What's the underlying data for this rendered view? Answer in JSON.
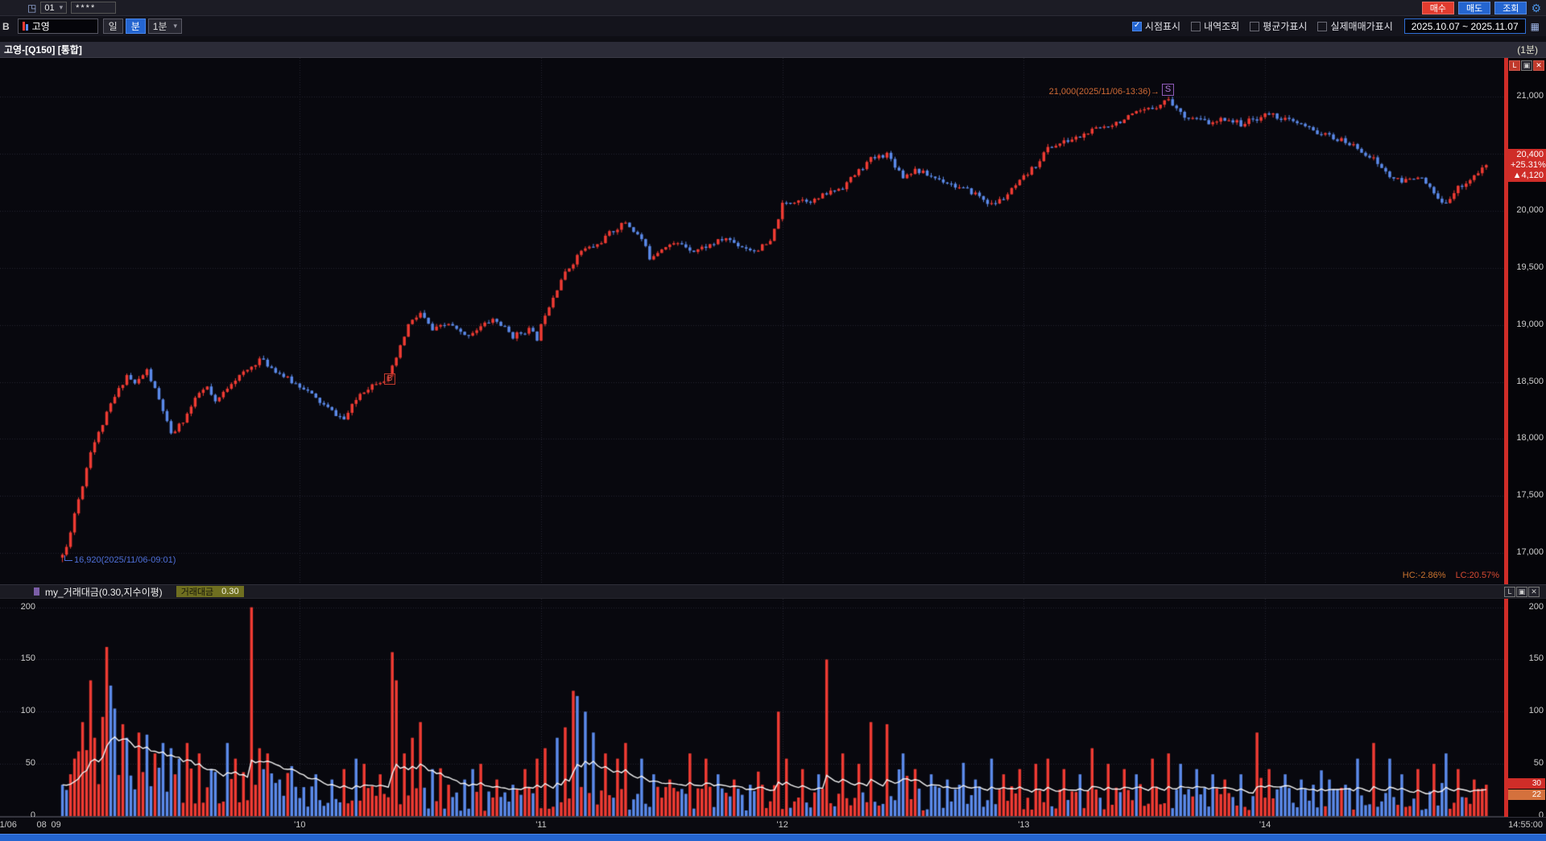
{
  "colors": {
    "up": "#ef3b33",
    "down": "#5b8aea",
    "bg": "#08080e",
    "grid": "#262631",
    "ma_line": "#f5f5f5",
    "badge_red": "#cf2d28",
    "badge_orange": "#d4713d",
    "accent_blue": "#2465d0"
  },
  "toolbar": {
    "account_no": "01",
    "password_mask": "****",
    "buy_button": "매수",
    "sell_button": "매도",
    "inquiry_button": "조회"
  },
  "chart_toolbar": {
    "b_label": "B",
    "symbol_input": "고영",
    "day_button": "일",
    "minute_button": "분",
    "interval_select": "1분",
    "checkboxes": [
      {
        "label": "시점표시",
        "checked": true
      },
      {
        "label": "내역조회",
        "checked": false
      },
      {
        "label": "평균가표시",
        "checked": false
      },
      {
        "label": "실제매매가표시",
        "checked": false
      }
    ],
    "date_range": "2025.10.07 ~ 2025.11.07"
  },
  "chart_header": {
    "title": "고영-[Q150] [통합]",
    "interval_label": "(1분)"
  },
  "pane_icons": [
    "L",
    "▣",
    "✕"
  ],
  "main_chart": {
    "y_ticks": [
      "21,000",
      "20,500",
      "20,000",
      "19,500",
      "19,000",
      "18,500",
      "18,000",
      "17,500",
      "17,000"
    ],
    "price_badge": {
      "price": "20,400",
      "pct": "+25.31%",
      "change": "▲4,120"
    },
    "low_annotation": "16,920(2025/11/06-09:01)",
    "high_annotation": "21,000(2025/11/06-13:36)→",
    "s_marker": "S",
    "b_marker": "B",
    "hc": "HC:-2.86%",
    "lc": "LC:20.57%"
  },
  "volume_pane": {
    "title": "my_거래대금(0.30,지수이평)",
    "legend_label": "거래대금",
    "legend_value": "0.30",
    "y_ticks": [
      "200",
      "150",
      "100",
      "50",
      "0"
    ],
    "badges": [
      {
        "text": "30",
        "color": "#cf2d28"
      },
      {
        "text": "22",
        "color": "#d4713d"
      }
    ]
  },
  "time_axis": {
    "labels": [
      {
        "text": "1/06",
        "m": -12.5
      },
      {
        "text": "08",
        "m": -4.2
      },
      {
        "text": "09",
        "m": -0.6
      },
      {
        "text": "'10",
        "m": 60
      },
      {
        "text": "'11",
        "m": 120
      },
      {
        "text": "'12",
        "m": 180
      },
      {
        "text": "'13",
        "m": 240
      },
      {
        "text": "'14",
        "m": 300
      },
      {
        "text": "14:55:00",
        "m": 355,
        "align": "right"
      }
    ]
  },
  "chart_data": {
    "type": "candlestick",
    "symbol": "고영 [Q150]",
    "interval": "1분",
    "session_start": "09:00",
    "session_end": "14:55:00",
    "session_low": 16920,
    "session_high": 21000,
    "last": 20400,
    "change": 4120,
    "change_pct": 25.31,
    "price_ticks": [
      21000,
      20500,
      20000,
      19500,
      19000,
      18500,
      18000,
      17500,
      17000
    ],
    "volume_ticks": [
      0,
      50,
      100,
      150,
      200
    ],
    "b_marker_minute": 82,
    "s_marker_minute": 276,
    "seed": 11,
    "price_anchors": [
      [
        0,
        16920
      ],
      [
        2,
        17050
      ],
      [
        4,
        17350
      ],
      [
        6,
        17600
      ],
      [
        8,
        17900
      ],
      [
        10,
        18050
      ],
      [
        13,
        18300
      ],
      [
        17,
        18560
      ],
      [
        19,
        18480
      ],
      [
        22,
        18600
      ],
      [
        24,
        18430
      ],
      [
        26,
        18250
      ],
      [
        28,
        18030
      ],
      [
        31,
        18160
      ],
      [
        35,
        18400
      ],
      [
        37,
        18450
      ],
      [
        39,
        18310
      ],
      [
        43,
        18500
      ],
      [
        47,
        18600
      ],
      [
        50,
        18700
      ],
      [
        54,
        18600
      ],
      [
        58,
        18500
      ],
      [
        61,
        18450
      ],
      [
        64,
        18350
      ],
      [
        68,
        18240
      ],
      [
        71,
        18170
      ],
      [
        75,
        18400
      ],
      [
        79,
        18500
      ],
      [
        82,
        18530
      ],
      [
        85,
        18800
      ],
      [
        87,
        19000
      ],
      [
        90,
        19100
      ],
      [
        93,
        18950
      ],
      [
        97,
        19010
      ],
      [
        101,
        18900
      ],
      [
        104,
        18960
      ],
      [
        108,
        19050
      ],
      [
        110,
        19000
      ],
      [
        113,
        18900
      ],
      [
        117,
        18960
      ],
      [
        119,
        18880
      ],
      [
        121,
        19100
      ],
      [
        125,
        19400
      ],
      [
        128,
        19550
      ],
      [
        130,
        19650
      ],
      [
        134,
        19700
      ],
      [
        137,
        19800
      ],
      [
        141,
        19900
      ],
      [
        145,
        19750
      ],
      [
        147,
        19590
      ],
      [
        151,
        19700
      ],
      [
        155,
        19710
      ],
      [
        158,
        19650
      ],
      [
        162,
        19700
      ],
      [
        166,
        19760
      ],
      [
        169,
        19700
      ],
      [
        173,
        19650
      ],
      [
        177,
        19720
      ],
      [
        180,
        20050
      ],
      [
        184,
        20100
      ],
      [
        188,
        20090
      ],
      [
        191,
        20150
      ],
      [
        195,
        20210
      ],
      [
        199,
        20350
      ],
      [
        202,
        20450
      ],
      [
        206,
        20500
      ],
      [
        210,
        20300
      ],
      [
        213,
        20360
      ],
      [
        217,
        20300
      ],
      [
        221,
        20250
      ],
      [
        224,
        20200
      ],
      [
        228,
        20150
      ],
      [
        232,
        20050
      ],
      [
        235,
        20110
      ],
      [
        239,
        20250
      ],
      [
        243,
        20400
      ],
      [
        246,
        20550
      ],
      [
        250,
        20600
      ],
      [
        254,
        20650
      ],
      [
        257,
        20700
      ],
      [
        261,
        20750
      ],
      [
        265,
        20800
      ],
      [
        268,
        20850
      ],
      [
        272,
        20900
      ],
      [
        276,
        20980
      ],
      [
        279,
        20850
      ],
      [
        283,
        20800
      ],
      [
        287,
        20760
      ],
      [
        290,
        20810
      ],
      [
        294,
        20760
      ],
      [
        298,
        20810
      ],
      [
        301,
        20850
      ],
      [
        305,
        20800
      ],
      [
        309,
        20750
      ],
      [
        312,
        20700
      ],
      [
        316,
        20650
      ],
      [
        320,
        20600
      ],
      [
        323,
        20550
      ],
      [
        327,
        20450
      ],
      [
        331,
        20300
      ],
      [
        334,
        20250
      ],
      [
        338,
        20310
      ],
      [
        342,
        20150
      ],
      [
        344,
        20050
      ],
      [
        348,
        20200
      ],
      [
        352,
        20300
      ],
      [
        355,
        20400
      ]
    ],
    "volume_spikes": [
      [
        1,
        30,
        "b"
      ],
      [
        2,
        25,
        "b"
      ],
      [
        4,
        55,
        "r"
      ],
      [
        5,
        62,
        "r"
      ],
      [
        6,
        90,
        "r"
      ],
      [
        8,
        130,
        "r"
      ],
      [
        9,
        75,
        "r"
      ],
      [
        11,
        95,
        "r"
      ],
      [
        12,
        162,
        "r"
      ],
      [
        13,
        125,
        "b"
      ],
      [
        14,
        103,
        "b"
      ],
      [
        16,
        88,
        "r"
      ],
      [
        17,
        75,
        "b"
      ],
      [
        20,
        80,
        "r"
      ],
      [
        22,
        78,
        "b"
      ],
      [
        24,
        60,
        "r"
      ],
      [
        26,
        70,
        "b"
      ],
      [
        28,
        65,
        "b"
      ],
      [
        30,
        55,
        "b"
      ],
      [
        32,
        70,
        "r"
      ],
      [
        35,
        60,
        "r"
      ],
      [
        38,
        45,
        "b"
      ],
      [
        42,
        70,
        "b"
      ],
      [
        44,
        55,
        "r"
      ],
      [
        48,
        200,
        "r"
      ],
      [
        50,
        65,
        "r"
      ],
      [
        52,
        60,
        "r"
      ],
      [
        55,
        35,
        "b"
      ],
      [
        59,
        28,
        "b"
      ],
      [
        64,
        40,
        "b"
      ],
      [
        68,
        35,
        "b"
      ],
      [
        71,
        45,
        "r"
      ],
      [
        74,
        55,
        "b"
      ],
      [
        76,
        50,
        "r"
      ],
      [
        80,
        40,
        "r"
      ],
      [
        83,
        157,
        "r"
      ],
      [
        84,
        130,
        "r"
      ],
      [
        86,
        60,
        "r"
      ],
      [
        88,
        75,
        "r"
      ],
      [
        90,
        90,
        "r"
      ],
      [
        93,
        45,
        "b"
      ],
      [
        97,
        30,
        "r"
      ],
      [
        101,
        35,
        "b"
      ],
      [
        103,
        45,
        "b"
      ],
      [
        105,
        50,
        "r"
      ],
      [
        109,
        35,
        "r"
      ],
      [
        113,
        30,
        "b"
      ],
      [
        116,
        45,
        "r"
      ],
      [
        119,
        55,
        "r"
      ],
      [
        121,
        65,
        "r"
      ],
      [
        124,
        75,
        "b"
      ],
      [
        126,
        85,
        "r"
      ],
      [
        128,
        120,
        "r"
      ],
      [
        129,
        115,
        "b"
      ],
      [
        131,
        100,
        "b"
      ],
      [
        133,
        80,
        "b"
      ],
      [
        136,
        60,
        "r"
      ],
      [
        139,
        55,
        "r"
      ],
      [
        141,
        70,
        "r"
      ],
      [
        145,
        55,
        "b"
      ],
      [
        148,
        40,
        "b"
      ],
      [
        152,
        35,
        "r"
      ],
      [
        157,
        60,
        "r"
      ],
      [
        161,
        55,
        "r"
      ],
      [
        164,
        40,
        "b"
      ],
      [
        168,
        35,
        "r"
      ],
      [
        172,
        30,
        "b"
      ],
      [
        175,
        30,
        "r"
      ],
      [
        179,
        100,
        "r"
      ],
      [
        181,
        55,
        "r"
      ],
      [
        185,
        45,
        "r"
      ],
      [
        189,
        40,
        "b"
      ],
      [
        191,
        150,
        "r"
      ],
      [
        195,
        60,
        "r"
      ],
      [
        199,
        50,
        "r"
      ],
      [
        202,
        90,
        "r"
      ],
      [
        206,
        88,
        "r"
      ],
      [
        210,
        60,
        "b"
      ],
      [
        213,
        45,
        "r"
      ],
      [
        217,
        40,
        "b"
      ],
      [
        221,
        35,
        "b"
      ],
      [
        224,
        30,
        "b"
      ],
      [
        228,
        35,
        "b"
      ],
      [
        232,
        55,
        "b"
      ],
      [
        235,
        40,
        "r"
      ],
      [
        239,
        45,
        "r"
      ],
      [
        243,
        50,
        "r"
      ],
      [
        246,
        55,
        "r"
      ],
      [
        250,
        45,
        "r"
      ],
      [
        254,
        40,
        "b"
      ],
      [
        257,
        65,
        "r"
      ],
      [
        261,
        50,
        "r"
      ],
      [
        265,
        45,
        "r"
      ],
      [
        268,
        40,
        "b"
      ],
      [
        272,
        55,
        "r"
      ],
      [
        276,
        60,
        "r"
      ],
      [
        279,
        50,
        "b"
      ],
      [
        283,
        45,
        "b"
      ],
      [
        287,
        40,
        "b"
      ],
      [
        290,
        35,
        "r"
      ],
      [
        294,
        40,
        "b"
      ],
      [
        298,
        80,
        "r"
      ],
      [
        301,
        45,
        "r"
      ],
      [
        305,
        40,
        "b"
      ],
      [
        309,
        35,
        "b"
      ],
      [
        312,
        30,
        "b"
      ],
      [
        316,
        35,
        "b"
      ],
      [
        320,
        30,
        "b"
      ],
      [
        323,
        55,
        "b"
      ],
      [
        327,
        70,
        "r"
      ],
      [
        331,
        55,
        "b"
      ],
      [
        334,
        40,
        "b"
      ],
      [
        338,
        45,
        "r"
      ],
      [
        342,
        50,
        "r"
      ],
      [
        345,
        60,
        "b"
      ],
      [
        348,
        45,
        "r"
      ],
      [
        352,
        35,
        "r"
      ],
      [
        355,
        30,
        "r"
      ]
    ]
  }
}
